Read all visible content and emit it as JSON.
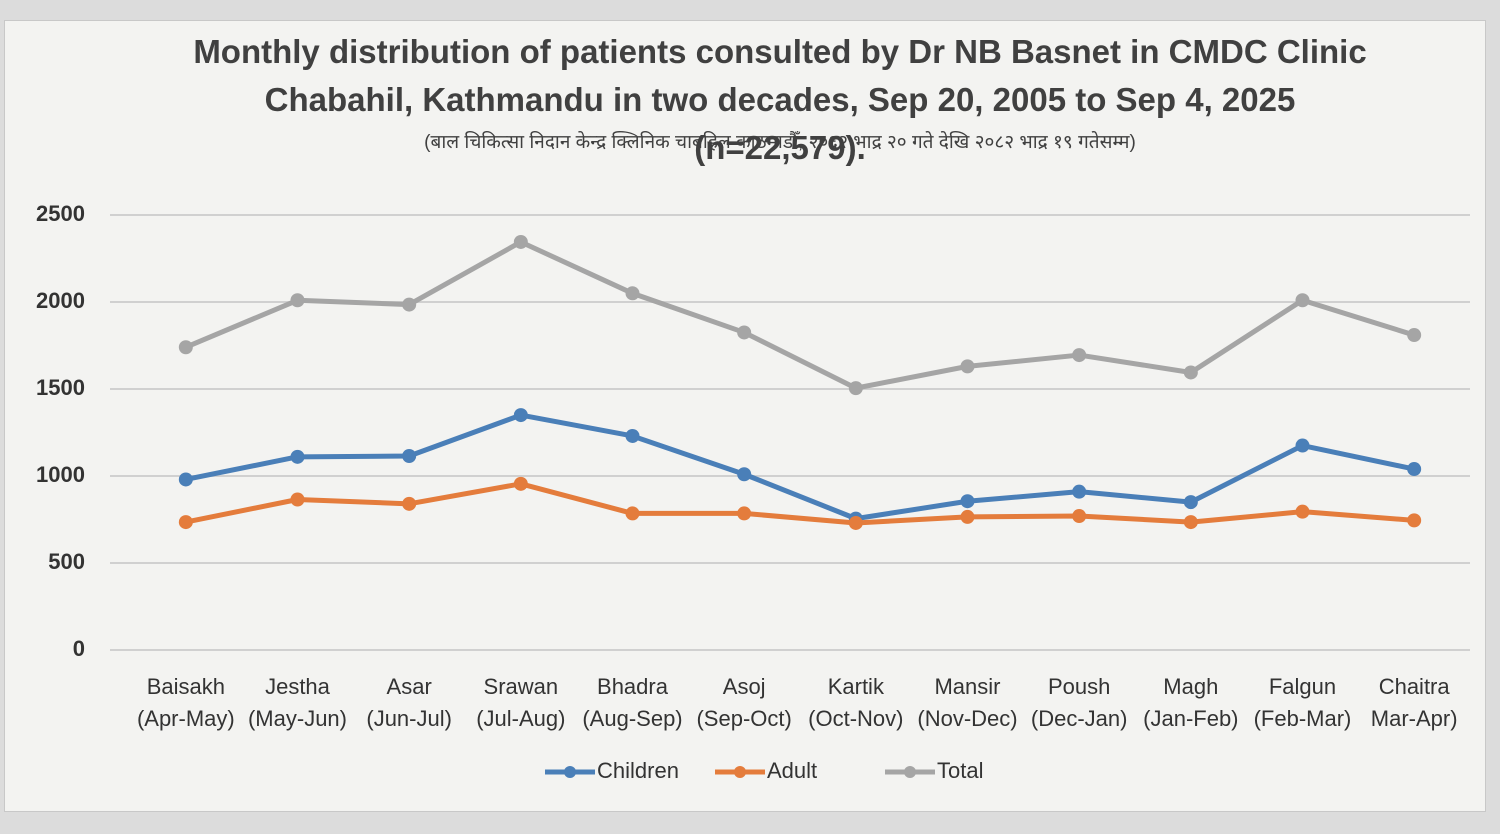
{
  "chart_data": {
    "type": "line",
    "title": "Monthly distribution of patients consulted by Dr NB Basnet in CMDC Clinic Chabahil, Kathmandu in two decades, Sep 20, 2005 to Sep 4, 2025 (n=22,579).",
    "subtitle": "(बाल चिकित्सा निदान केन्द्र क्लिनिक चाबहिल काठमाडौँ, २०६२ भाद्र २० गते देखि २०८२ भाद्र १९ गतेसम्म)",
    "categories": [
      "Baisakh",
      "Jestha",
      "Asar",
      "Srawan",
      "Bhadra",
      "Asoj",
      "Kartik",
      "Mansir",
      "Poush",
      "Magh",
      "Falgun",
      "Chaitra"
    ],
    "category_periods": [
      "(Apr-May)",
      "(May-Jun)",
      "(Jun-Jul)",
      "(Jul-Aug)",
      "(Aug-Sep)",
      "(Sep-Oct)",
      "(Oct-Nov)",
      "(Nov-Dec)",
      "(Dec-Jan)",
      "(Jan-Feb)",
      "(Feb-Mar)",
      "Mar-Apr)"
    ],
    "series": [
      {
        "name": "Children",
        "color": "#4a7fb8",
        "values": [
          980,
          1110,
          1115,
          1350,
          1230,
          1010,
          755,
          855,
          910,
          850,
          1175,
          1040
        ]
      },
      {
        "name": "Adult",
        "color": "#e47c3c",
        "values": [
          735,
          865,
          840,
          955,
          785,
          785,
          730,
          765,
          770,
          735,
          795,
          745
        ]
      },
      {
        "name": "Total",
        "color": "#a5a5a5",
        "values": [
          1740,
          2010,
          1985,
          2345,
          2050,
          1825,
          1505,
          1630,
          1695,
          1595,
          2010,
          1810
        ]
      }
    ],
    "ylim": [
      0,
      2500
    ],
    "yticks": [
      0,
      500,
      1000,
      1500,
      2000,
      2500
    ],
    "grid": true,
    "legend": "bottom"
  }
}
